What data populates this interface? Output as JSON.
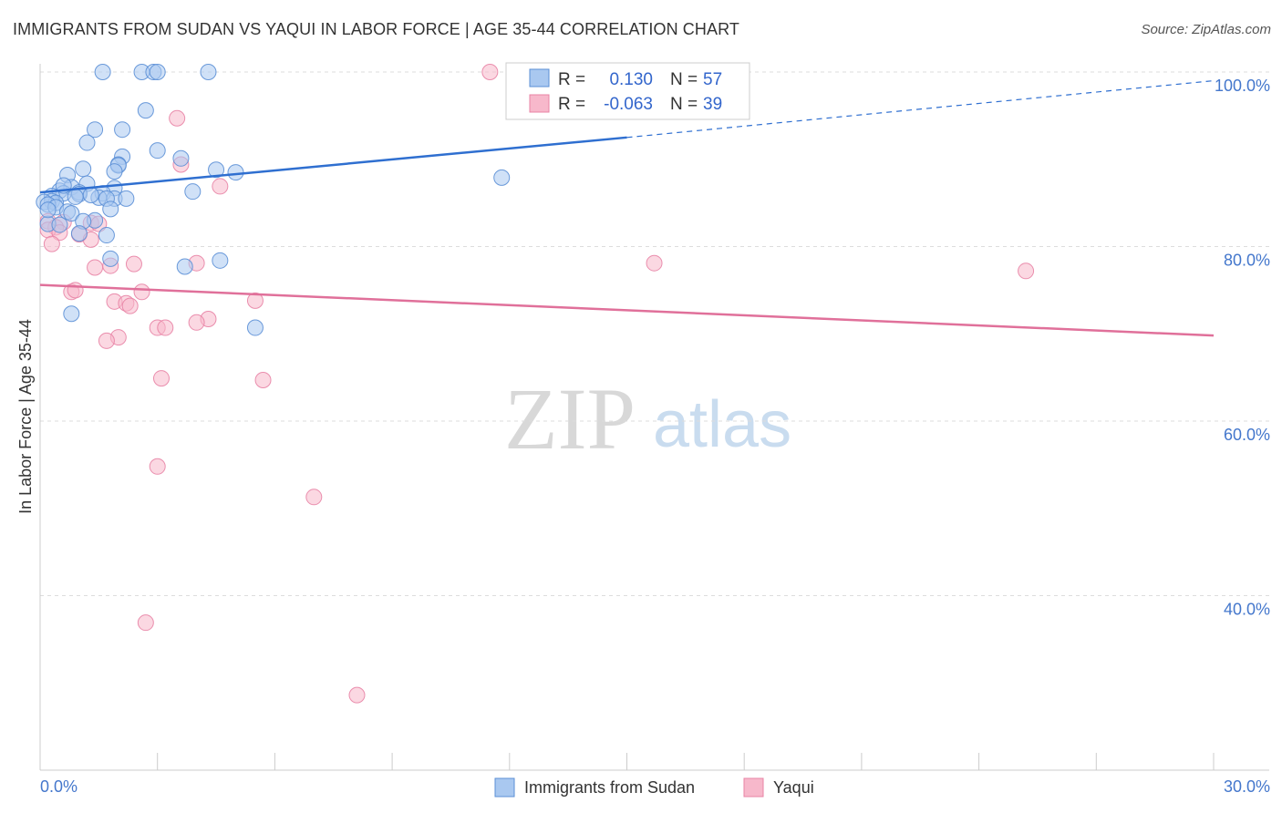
{
  "title": "IMMIGRANTS FROM SUDAN VS YAQUI IN LABOR FORCE | AGE 35-44 CORRELATION CHART",
  "source": "Source: ZipAtlas.com",
  "watermark": {
    "part1": "ZIP",
    "part2": "atlas"
  },
  "colors": {
    "blue_fill": "#a9c8f0",
    "blue_stroke": "#5b8fd6",
    "blue_line": "#2f6fd0",
    "pink_fill": "#f7b8cb",
    "pink_stroke": "#e883a5",
    "pink_line": "#e0709a",
    "grid": "#dddddd",
    "tick_text": "#4477cc"
  },
  "legend": {
    "rows": [
      {
        "r_label": "R =",
        "r_value": "0.130",
        "n_label": "N =",
        "n_value": "57"
      },
      {
        "r_label": "R =",
        "r_value": "-0.063",
        "n_label": "N =",
        "n_value": "39"
      }
    ]
  },
  "chart_data": {
    "type": "scatter",
    "title": "IMMIGRANTS FROM SUDAN VS YAQUI IN LABOR FORCE | AGE 35-44 CORRELATION CHART",
    "xlabel": "",
    "ylabel": "In Labor Force | Age 35-44",
    "xlim": [
      0,
      30
    ],
    "ylim": [
      20,
      100
    ],
    "x_tick_labels": [
      "0.0%",
      "30.0%"
    ],
    "y_tick_values": [
      40,
      60,
      80,
      100
    ],
    "y_tick_labels": [
      "40.0%",
      "60.0%",
      "80.0%",
      "100.0%"
    ],
    "series": [
      {
        "name": "Immigrants from Sudan",
        "color": "blue",
        "R": 0.13,
        "N": 57,
        "trend": {
          "x0": 0,
          "y0": 86.2,
          "x1": 15,
          "y1": 92.5,
          "x_dash_end": 30,
          "y_dash_end": 99.0
        },
        "points": [
          [
            1.6,
            100
          ],
          [
            2.6,
            100
          ],
          [
            2.9,
            100
          ],
          [
            3.0,
            100
          ],
          [
            4.3,
            100
          ],
          [
            2.7,
            95.6
          ],
          [
            2.1,
            93.4
          ],
          [
            1.4,
            93.4
          ],
          [
            3.0,
            91.0
          ],
          [
            1.2,
            91.9
          ],
          [
            2.1,
            90.3
          ],
          [
            3.6,
            90.1
          ],
          [
            2.0,
            89.4
          ],
          [
            2.0,
            89.3
          ],
          [
            1.1,
            88.9
          ],
          [
            1.9,
            88.6
          ],
          [
            4.5,
            88.8
          ],
          [
            5.0,
            88.5
          ],
          [
            0.7,
            88.2
          ],
          [
            11.8,
            87.9
          ],
          [
            1.2,
            87.2
          ],
          [
            1.9,
            86.7
          ],
          [
            0.8,
            86.8
          ],
          [
            0.5,
            86.4
          ],
          [
            0.6,
            86.1
          ],
          [
            1.0,
            86.2
          ],
          [
            1.6,
            86.1
          ],
          [
            1.0,
            86.0
          ],
          [
            0.3,
            85.8
          ],
          [
            0.9,
            85.7
          ],
          [
            1.5,
            85.6
          ],
          [
            1.9,
            85.5
          ],
          [
            2.2,
            85.5
          ],
          [
            1.7,
            85.5
          ],
          [
            0.3,
            85.2
          ],
          [
            0.4,
            85.0
          ],
          [
            0.1,
            85.1
          ],
          [
            0.2,
            84.8
          ],
          [
            0.4,
            84.5
          ],
          [
            1.8,
            84.3
          ],
          [
            0.7,
            84.0
          ],
          [
            0.8,
            83.8
          ],
          [
            1.4,
            83.0
          ],
          [
            1.1,
            82.9
          ],
          [
            0.2,
            82.6
          ],
          [
            0.5,
            82.5
          ],
          [
            1.0,
            81.5
          ],
          [
            1.7,
            81.3
          ],
          [
            1.8,
            78.6
          ],
          [
            4.6,
            78.4
          ],
          [
            3.7,
            77.7
          ],
          [
            0.8,
            72.3
          ],
          [
            5.5,
            70.7
          ],
          [
            0.2,
            84.2
          ],
          [
            1.3,
            85.9
          ],
          [
            0.6,
            87.0
          ],
          [
            3.9,
            86.3
          ]
        ]
      },
      {
        "name": "Yaqui",
        "color": "pink",
        "R": -0.063,
        "N": 39,
        "trend": {
          "x0": 0,
          "y0": 75.6,
          "x1": 30,
          "y1": 69.8
        },
        "points": [
          [
            11.5,
            100
          ],
          [
            3.5,
            94.7
          ],
          [
            3.6,
            89.4
          ],
          [
            4.6,
            86.9
          ],
          [
            0.2,
            82.9
          ],
          [
            0.6,
            82.8
          ],
          [
            1.3,
            82.7
          ],
          [
            1.5,
            82.6
          ],
          [
            0.4,
            82.2
          ],
          [
            0.2,
            81.9
          ],
          [
            0.5,
            81.6
          ],
          [
            1.0,
            81.4
          ],
          [
            1.3,
            80.8
          ],
          [
            0.3,
            80.3
          ],
          [
            1.4,
            77.6
          ],
          [
            1.8,
            77.8
          ],
          [
            2.4,
            78.0
          ],
          [
            4.0,
            78.1
          ],
          [
            15.7,
            78.1
          ],
          [
            25.2,
            77.2
          ],
          [
            0.8,
            74.8
          ],
          [
            0.9,
            75.0
          ],
          [
            2.6,
            74.8
          ],
          [
            1.9,
            73.7
          ],
          [
            2.2,
            73.5
          ],
          [
            2.3,
            73.2
          ],
          [
            5.5,
            73.8
          ],
          [
            4.3,
            71.7
          ],
          [
            4.0,
            71.3
          ],
          [
            3.0,
            70.7
          ],
          [
            3.2,
            70.7
          ],
          [
            2.0,
            69.6
          ],
          [
            1.7,
            69.2
          ],
          [
            3.1,
            64.9
          ],
          [
            5.7,
            64.7
          ],
          [
            3.0,
            54.8
          ],
          [
            7.0,
            51.3
          ],
          [
            2.7,
            36.9
          ],
          [
            8.1,
            28.6
          ]
        ]
      }
    ]
  },
  "bottom_legend": [
    {
      "label": "Immigrants from Sudan",
      "color": "blue"
    },
    {
      "label": "Yaqui",
      "color": "pink"
    }
  ]
}
